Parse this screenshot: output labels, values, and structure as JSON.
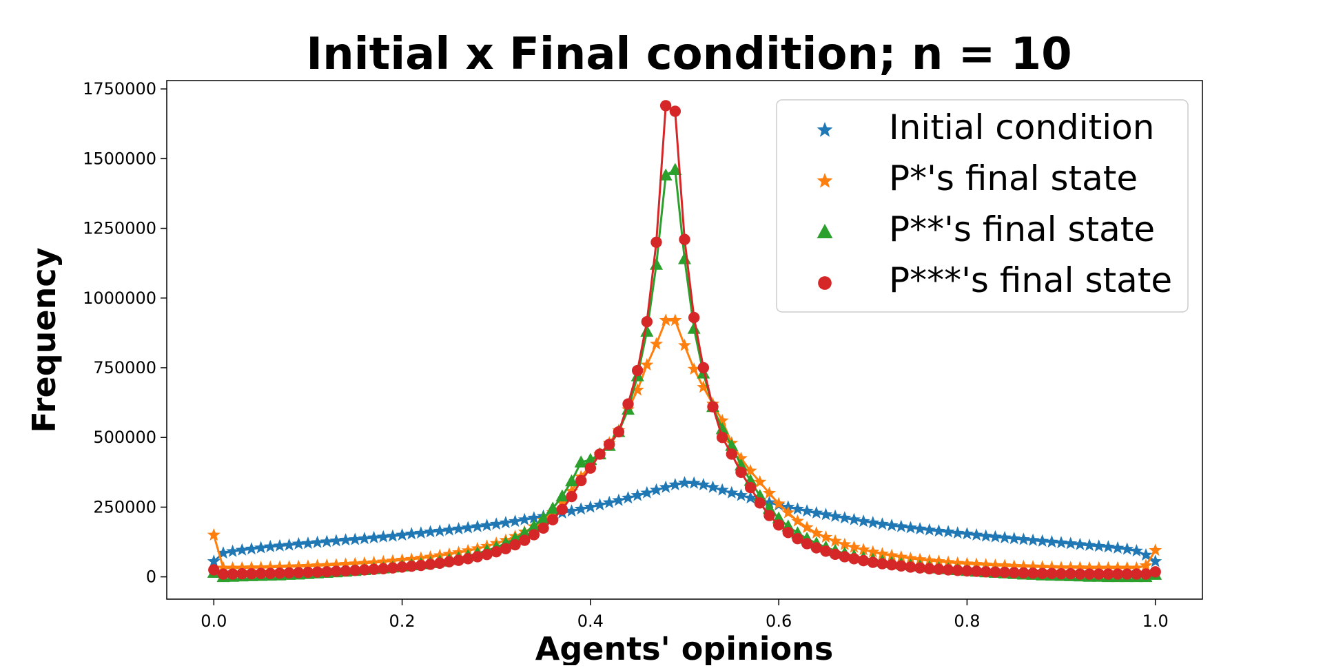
{
  "chart_data": {
    "type": "line",
    "title": "Initial x Final condition; n = 10",
    "xlabel": "Agents' opinions",
    "ylabel": "Frequency",
    "xlim": [
      -0.05,
      1.05
    ],
    "ylim": [
      -80000,
      1780000
    ],
    "x_ticks": [
      0.0,
      0.2,
      0.4,
      0.6,
      0.8,
      1.0
    ],
    "x_tick_labels": [
      "0.0",
      "0.2",
      "0.4",
      "0.6",
      "0.8",
      "1.0"
    ],
    "y_ticks": [
      0,
      250000,
      500000,
      750000,
      1000000,
      1250000,
      1500000,
      1750000
    ],
    "y_tick_labels": [
      "0",
      "250000",
      "500000",
      "750000",
      "1000000",
      "1250000",
      "1500000",
      "1750000"
    ],
    "grid": false,
    "legend_position": "top-right",
    "x": [
      0.0,
      0.01,
      0.02,
      0.03,
      0.04,
      0.05,
      0.06,
      0.07,
      0.08,
      0.09,
      0.1,
      0.11,
      0.12,
      0.13,
      0.14,
      0.15,
      0.16,
      0.17,
      0.18,
      0.19,
      0.2,
      0.21,
      0.22,
      0.23,
      0.24,
      0.25,
      0.26,
      0.27,
      0.28,
      0.29,
      0.3,
      0.31,
      0.32,
      0.33,
      0.34,
      0.35,
      0.36,
      0.37,
      0.38,
      0.39,
      0.4,
      0.41,
      0.42,
      0.43,
      0.44,
      0.45,
      0.46,
      0.47,
      0.48,
      0.49,
      0.5,
      0.51,
      0.52,
      0.53,
      0.54,
      0.55,
      0.56,
      0.57,
      0.58,
      0.59,
      0.6,
      0.61,
      0.62,
      0.63,
      0.64,
      0.65,
      0.66,
      0.67,
      0.68,
      0.69,
      0.7,
      0.71,
      0.72,
      0.73,
      0.74,
      0.75,
      0.76,
      0.77,
      0.78,
      0.79,
      0.8,
      0.81,
      0.82,
      0.83,
      0.84,
      0.85,
      0.86,
      0.87,
      0.88,
      0.89,
      0.9,
      0.91,
      0.92,
      0.93,
      0.94,
      0.95,
      0.96,
      0.97,
      0.98,
      0.99,
      1.0
    ],
    "series": [
      {
        "name": "Initial condition",
        "color": "#1f77b4",
        "marker": "star",
        "values": [
          55000,
          85000,
          91000,
          96000,
          100000,
          104000,
          108000,
          111000,
          114000,
          118000,
          120000,
          123000,
          126000,
          129000,
          132000,
          134000,
          137000,
          140000,
          143000,
          146000,
          150000,
          154000,
          157000,
          161000,
          164000,
          168000,
          172000,
          176000,
          180000,
          184000,
          189000,
          194000,
          199000,
          205000,
          211000,
          217000,
          223000,
          229000,
          236000,
          243000,
          250000,
          258000,
          266000,
          274000,
          283000,
          292000,
          301000,
          311000,
          321000,
          330000,
          337000,
          336000,
          330000,
          321000,
          311000,
          301000,
          292000,
          283000,
          274000,
          266000,
          258000,
          250000,
          243000,
          236000,
          229000,
          223000,
          217000,
          211000,
          205000,
          199000,
          194000,
          189000,
          184000,
          180000,
          176000,
          172000,
          168000,
          164000,
          161000,
          157000,
          154000,
          150000,
          146000,
          143000,
          140000,
          137000,
          134000,
          131000,
          128000,
          125000,
          122000,
          119000,
          116000,
          113000,
          110000,
          107000,
          103000,
          99000,
          93000,
          78000,
          55000
        ]
      },
      {
        "name": "P*'s final state",
        "color": "#ff7f0e",
        "marker": "star",
        "values": [
          150000,
          32000,
          32000,
          32000,
          33000,
          33000,
          34000,
          35000,
          36000,
          37000,
          38000,
          40000,
          41000,
          43000,
          45000,
          47000,
          49000,
          51000,
          54000,
          57000,
          60000,
          63000,
          67000,
          71000,
          76000,
          81000,
          87000,
          94000,
          101000,
          110000,
          120000,
          131000,
          145000,
          161000,
          180000,
          203000,
          231000,
          265000,
          307000,
          359000,
          400000,
          440000,
          480000,
          525000,
          600000,
          670000,
          760000,
          835000,
          920000,
          920000,
          830000,
          745000,
          680000,
          620000,
          560000,
          480000,
          425000,
          380000,
          340000,
          300000,
          262000,
          230000,
          200000,
          177000,
          157000,
          142000,
          128000,
          116000,
          106000,
          97000,
          89000,
          82000,
          76000,
          71000,
          66000,
          62000,
          58000,
          55000,
          52000,
          49000,
          47000,
          45000,
          43000,
          41000,
          40000,
          38000,
          37000,
          36000,
          35000,
          34000,
          33000,
          33000,
          33000,
          32000,
          32000,
          32000,
          32000,
          32000,
          32000,
          40000,
          95000
        ]
      },
      {
        "name": "P**'s final state",
        "color": "#2ca02c",
        "marker": "triangle",
        "values": [
          15000,
          0,
          1000,
          2000,
          3000,
          4000,
          5000,
          6000,
          8000,
          9000,
          11000,
          13000,
          15000,
          17000,
          19000,
          22000,
          25000,
          28000,
          31000,
          34000,
          38000,
          42000,
          46000,
          50000,
          55000,
          61000,
          68000,
          75000,
          84000,
          94000,
          106000,
          120000,
          137000,
          157000,
          181000,
          210000,
          245000,
          289000,
          343000,
          411000,
          420000,
          440000,
          470000,
          520000,
          600000,
          720000,
          880000,
          1120000,
          1440000,
          1460000,
          1140000,
          890000,
          730000,
          610000,
          530000,
          470000,
          400000,
          345000,
          290000,
          245000,
          210000,
          181000,
          157000,
          137000,
          120000,
          106000,
          94000,
          84000,
          75000,
          68000,
          61000,
          55000,
          50000,
          46000,
          42000,
          38000,
          34000,
          31000,
          28000,
          25000,
          22000,
          19000,
          17000,
          15000,
          13000,
          11000,
          9000,
          8000,
          6000,
          5000,
          4000,
          3000,
          2000,
          1000,
          1000,
          0,
          0,
          0,
          0,
          0,
          8000
        ]
      },
      {
        "name": "P***'s final state",
        "color": "#d62728",
        "marker": "circle",
        "values": [
          25000,
          10000,
          10000,
          11000,
          11000,
          12000,
          12000,
          13000,
          14000,
          15000,
          16000,
          17000,
          18000,
          20000,
          21000,
          23000,
          25000,
          27000,
          29000,
          32000,
          35000,
          38000,
          41000,
          45000,
          49000,
          54000,
          59000,
          65000,
          72000,
          80000,
          90000,
          101000,
          115000,
          131000,
          151000,
          175000,
          205000,
          242000,
          288000,
          345000,
          390000,
          440000,
          475000,
          520000,
          620000,
          740000,
          915000,
          1200000,
          1690000,
          1670000,
          1210000,
          930000,
          750000,
          610000,
          500000,
          440000,
          375000,
          320000,
          265000,
          220000,
          186000,
          159000,
          137000,
          119000,
          104000,
          92000,
          81000,
          72000,
          65000,
          58000,
          52000,
          47000,
          43000,
          39000,
          35000,
          32000,
          29000,
          27000,
          25000,
          23000,
          21000,
          20000,
          18000,
          17000,
          16000,
          15000,
          14000,
          13000,
          12000,
          12000,
          11000,
          11000,
          10000,
          10000,
          10000,
          10000,
          10000,
          10000,
          10000,
          10000,
          18000
        ]
      }
    ]
  }
}
